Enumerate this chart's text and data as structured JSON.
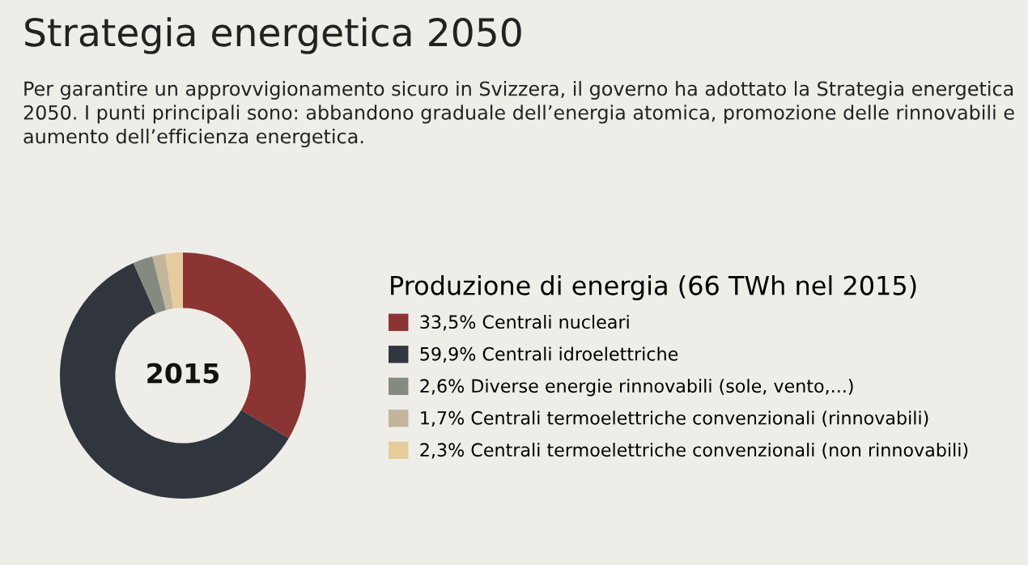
{
  "chart_data": {
    "type": "donut",
    "title": "Strategia energetica 2050",
    "subtitle": "Per garantire un approvvigionamento sicuro in Svizzera, il governo ha adottato la Strategia energetica 2050. I punti principali sono: abbandono graduale dell’energia atomica, promozione delle rinnovabili e aumento dell’efficienza energetica.",
    "legend_title": "Produzione di energia (66 TWh nel 2015)",
    "annotations": [
      "2015"
    ],
    "categories": [
      "Centrali nucleari",
      "Centrali idroelettriche",
      "Diverse energie rinnovabili (sole, vento,...)",
      "Centrali termoelettriche convenzionali (rinnovabili)",
      "Centrali termoelettriche convenzionali (non rinnovabili)"
    ],
    "values": [
      33.5,
      59.9,
      2.6,
      1.7,
      2.3
    ],
    "value_labels": [
      "33,5%",
      "59,9%",
      "2,6%",
      "1,7%",
      "2,3%"
    ],
    "colors": [
      "#8a3434",
      "#30353e",
      "#858a80",
      "#c2b59b",
      "#e6cc9c"
    ],
    "legend": "right"
  }
}
